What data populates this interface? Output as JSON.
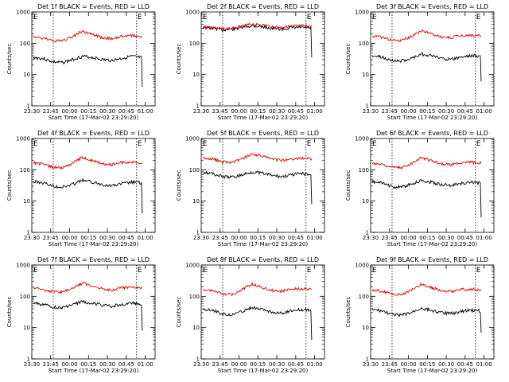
{
  "colors": {
    "events": "#000000",
    "lld": "#e00000",
    "axis": "#000000",
    "background": "#ffffff"
  },
  "panel_text": {
    "ylabel": "Counts/sec",
    "xlabel": "Start Time (17-Mar-02 23:29:20)",
    "x_ticks": [
      "23:30",
      "23:45",
      "00:00",
      "00:15",
      "00:30",
      "00:45",
      "01:00"
    ],
    "y_ticks": [
      "1",
      "10",
      "100",
      "1000"
    ],
    "marker_start": "E",
    "marker_end": "E"
  },
  "chart_data": [
    {
      "type": "line",
      "title": "Det 1f BLACK = Events, RED = LLD",
      "ylim": [
        1,
        1000
      ],
      "yscale": "log",
      "grid": false,
      "series": [
        {
          "name": "Events",
          "color": "#000000",
          "values": [
            35,
            32,
            25,
            24,
            30,
            38,
            35,
            30,
            28,
            33,
            38,
            34,
            4
          ]
        },
        {
          "name": "LLD",
          "color": "#e00000",
          "values": [
            160,
            145,
            120,
            118,
            160,
            240,
            190,
            150,
            140,
            165,
            175,
            165,
            165
          ]
        }
      ]
    },
    {
      "type": "line",
      "title": "Det 2f BLACK = Events, RED = LLD",
      "ylim": [
        1,
        1000
      ],
      "yscale": "log",
      "grid": false,
      "series": [
        {
          "name": "Events",
          "color": "#000000",
          "values": [
            320,
            300,
            270,
            280,
            320,
            360,
            340,
            300,
            280,
            310,
            320,
            310,
            35
          ]
        },
        {
          "name": "LLD",
          "color": "#e00000",
          "values": [
            340,
            320,
            290,
            300,
            350,
            410,
            390,
            340,
            320,
            350,
            360,
            350,
            360
          ]
        }
      ]
    },
    {
      "type": "line",
      "title": "Det 3f BLACK = Events, RED = LLD",
      "ylim": [
        1,
        1000
      ],
      "yscale": "log",
      "grid": false,
      "series": [
        {
          "name": "Events",
          "color": "#000000",
          "values": [
            40,
            36,
            28,
            27,
            33,
            45,
            40,
            34,
            30,
            36,
            40,
            38,
            6
          ]
        },
        {
          "name": "LLD",
          "color": "#e00000",
          "values": [
            170,
            155,
            125,
            120,
            165,
            250,
            200,
            160,
            150,
            175,
            180,
            170,
            170
          ]
        }
      ]
    },
    {
      "type": "line",
      "title": "Det 4f BLACK = Events, RED = LLD",
      "ylim": [
        1,
        1000
      ],
      "yscale": "log",
      "grid": false,
      "series": [
        {
          "name": "Events",
          "color": "#000000",
          "values": [
            42,
            38,
            30,
            28,
            34,
            46,
            40,
            34,
            31,
            36,
            40,
            38,
            4
          ]
        },
        {
          "name": "LLD",
          "color": "#e00000",
          "values": [
            165,
            150,
            120,
            115,
            160,
            245,
            195,
            155,
            145,
            170,
            175,
            165,
            165
          ]
        }
      ]
    },
    {
      "type": "line",
      "title": "Det 5f BLACK = Events, RED = LLD",
      "ylim": [
        1,
        1000
      ],
      "yscale": "log",
      "grid": false,
      "series": [
        {
          "name": "Events",
          "color": "#000000",
          "values": [
            85,
            75,
            60,
            58,
            68,
            85,
            78,
            66,
            60,
            68,
            75,
            70,
            8
          ]
        },
        {
          "name": "LLD",
          "color": "#e00000",
          "values": [
            240,
            220,
            180,
            175,
            220,
            320,
            270,
            220,
            200,
            225,
            235,
            225,
            225
          ]
        }
      ]
    },
    {
      "type": "line",
      "title": "Det 6f BLACK = Events, RED = LLD",
      "ylim": [
        1,
        1000
      ],
      "yscale": "log",
      "grid": false,
      "series": [
        {
          "name": "Events",
          "color": "#000000",
          "values": [
            42,
            37,
            29,
            28,
            34,
            46,
            40,
            34,
            31,
            36,
            40,
            38,
            3
          ]
        },
        {
          "name": "LLD",
          "color": "#e00000",
          "values": [
            165,
            150,
            120,
            115,
            160,
            245,
            195,
            155,
            145,
            170,
            175,
            165,
            165
          ]
        }
      ]
    },
    {
      "type": "line",
      "title": "Det 7f BLACK = Events, RED = LLD",
      "ylim": [
        1,
        1000
      ],
      "yscale": "log",
      "grid": false,
      "series": [
        {
          "name": "Events",
          "color": "#000000",
          "values": [
            60,
            55,
            45,
            44,
            52,
            68,
            60,
            52,
            48,
            55,
            60,
            56,
            8
          ]
        },
        {
          "name": "LLD",
          "color": "#e00000",
          "values": [
            180,
            165,
            140,
            135,
            180,
            260,
            215,
            175,
            160,
            185,
            190,
            180,
            180
          ]
        }
      ]
    },
    {
      "type": "line",
      "title": "Det 8f BLACK = Events, RED = LLD",
      "ylim": [
        1,
        1000
      ],
      "yscale": "log",
      "grid": false,
      "series": [
        {
          "name": "Events",
          "color": "#000000",
          "values": [
            40,
            36,
            27,
            26,
            32,
            44,
            38,
            32,
            29,
            34,
            38,
            36,
            4
          ]
        },
        {
          "name": "LLD",
          "color": "#e00000",
          "values": [
            165,
            150,
            120,
            115,
            160,
            245,
            195,
            155,
            145,
            170,
            175,
            165,
            165
          ]
        }
      ]
    },
    {
      "type": "line",
      "title": "Det 9f BLACK = Events, RED = LLD",
      "ylim": [
        1,
        1000
      ],
      "yscale": "log",
      "grid": false,
      "series": [
        {
          "name": "Events",
          "color": "#000000",
          "values": [
            38,
            34,
            26,
            25,
            30,
            42,
            36,
            30,
            28,
            32,
            36,
            34,
            7
          ]
        },
        {
          "name": "LLD",
          "color": "#e00000",
          "values": [
            160,
            145,
            118,
            112,
            155,
            240,
            190,
            152,
            142,
            165,
            170,
            160,
            160
          ]
        }
      ]
    }
  ]
}
